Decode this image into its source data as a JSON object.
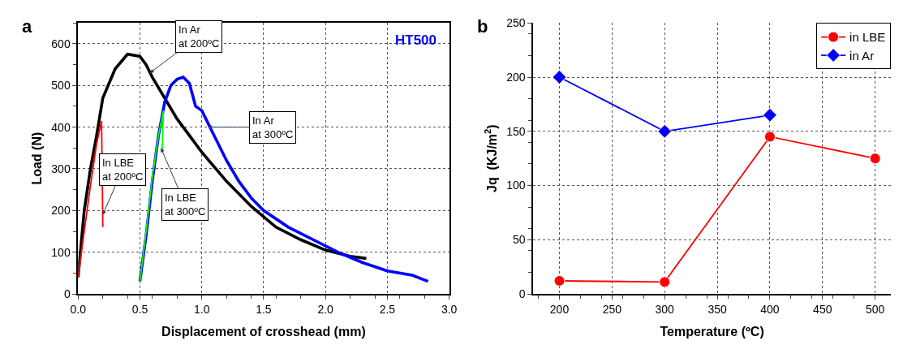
{
  "chart_data": [
    {
      "type": "line",
      "title": "a",
      "xlabel": "Displacement of crosshead (mm)",
      "ylabel": "Load (N)",
      "xlim": [
        0,
        3
      ],
      "xticks": [
        {
          "value": 0,
          "label": "0.0"
        },
        0.5,
        {
          "value": 1,
          "label": "1.0"
        },
        1.5,
        {
          "value": 2,
          "label": "2.0"
        },
        2.5,
        {
          "value": 3,
          "label": "3.0"
        }
      ],
      "ylim": [
        0,
        650
      ],
      "yticks": [
        0,
        100,
        200,
        300,
        400,
        500,
        600
      ],
      "grid": true,
      "legend": false,
      "marker": "none",
      "line_style": "solid",
      "series": [
        {
          "color": "#000000",
          "x": [
            0,
            0.05,
            0.1,
            0.15,
            0.2,
            0.3,
            0.4,
            0.5,
            0.55,
            0.6,
            0.7,
            0.8,
            0.9,
            1.0,
            1.2,
            1.4,
            1.6,
            1.8,
            2.0,
            2.2,
            2.33
          ],
          "values": [
            40,
            200,
            300,
            380,
            470,
            540,
            575,
            570,
            550,
            520,
            470,
            420,
            380,
            340,
            270,
            210,
            160,
            130,
            105,
            90,
            85
          ]
        },
        {
          "color": "#0000ff",
          "x": [
            0.5,
            0.55,
            0.6,
            0.65,
            0.7,
            0.75,
            0.8,
            0.85,
            0.9,
            0.95,
            1.0,
            1.1,
            1.2,
            1.3,
            1.4,
            1.5,
            1.7,
            1.9,
            2.1,
            2.3,
            2.5,
            2.7,
            2.83
          ],
          "values": [
            30,
            140,
            270,
            380,
            460,
            500,
            515,
            520,
            505,
            450,
            440,
            380,
            320,
            270,
            230,
            200,
            160,
            130,
            100,
            75,
            55,
            45,
            30
          ]
        },
        {
          "color": "#ff0000",
          "x": [
            0,
            0.05,
            0.1,
            0.15,
            0.19,
            0.2
          ],
          "values": [
            40,
            150,
            260,
            360,
            415,
            160
          ]
        },
        {
          "color": "#00ff00",
          "x": [
            0.5,
            0.55,
            0.6,
            0.65,
            0.69,
            0.68
          ],
          "values": [
            30,
            150,
            280,
            380,
            440,
            345
          ]
        }
      ],
      "annotations": [
        {
          "text": "In Ar\nat 200ºC",
          "x": 0.58,
          "y": 530
        },
        {
          "text": "In Ar\nat 300ºC",
          "x": 1.05,
          "y": 400
        },
        {
          "text": "In LBE\nat 300ºC",
          "x": 0.67,
          "y": 350
        },
        {
          "text": "In LBE\nat 200ºC",
          "x": 0.2,
          "y": 190
        },
        "HT500"
      ]
    },
    {
      "type": "line",
      "title": "b",
      "xlabel": "Temperature (ºC)",
      "ylabel": "Jq  (KJ/m$^{2}$)",
      "x": [
        200,
        300,
        400,
        500
      ],
      "xlim": [
        175,
        515
      ],
      "xticks": [
        200,
        250,
        300,
        350,
        400,
        450,
        500
      ],
      "ylim": [
        0,
        250
      ],
      "yticks": [
        0,
        50,
        100,
        150,
        200,
        250
      ],
      "grid": true,
      "legend": "top right",
      "line_style": "solid",
      "series": [
        {
          "name": "in LBE",
          "color": "#ff0000",
          "marker": "circle",
          "values": [
            12,
            11,
            145,
            125
          ]
        },
        {
          "name": "in Ar",
          "color": "#0000ff",
          "marker": "diamond",
          "values": [
            200,
            150,
            165,
            null
          ]
        }
      ]
    }
  ]
}
